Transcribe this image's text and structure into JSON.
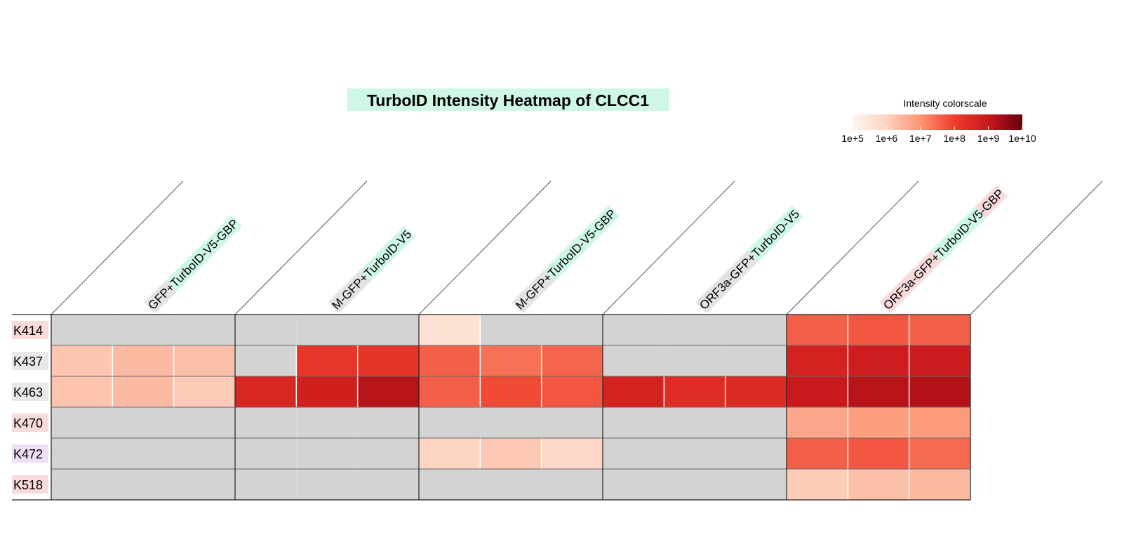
{
  "chart_data": {
    "type": "heatmap",
    "title": "TurboID Intensity Heatmap of CLCC1",
    "colorscale": {
      "title": "Intensity colorscale",
      "scale": "log10",
      "range": [
        100000,
        10000000000
      ],
      "ticks": [
        "1e+5",
        "1e+6",
        "1e+7",
        "1e+8",
        "1e+9",
        "1e+10"
      ],
      "colors": [
        "#fff5f0",
        "#fcd3c1",
        "#fc9474",
        "#ef3c2c",
        "#c8171c",
        "#67000d"
      ],
      "missing_color": "#d3d3d3"
    },
    "rows": [
      "K414",
      "K437",
      "K463",
      "K470",
      "K472",
      "K518"
    ],
    "row_highlights": [
      "#f9dada",
      "#e8e8e8",
      "#e8e8e8",
      "#f9dada",
      "#efdff5",
      "#f9dada"
    ],
    "groups": [
      {
        "label": "GFP+TurboID-V5-GBP",
        "segments": [
          {
            "text": "GFP+",
            "bg": "#e3e3e3"
          },
          {
            "text": "TurboID-V5-GBP",
            "bg": "#cff7e6"
          }
        ],
        "replicates": 3
      },
      {
        "label": "M-GFP+TurboID-V5",
        "segments": [
          {
            "text": "M-GFP+",
            "bg": "#e3e3e3"
          },
          {
            "text": "TurboID-V5",
            "bg": "#cff7e6"
          }
        ],
        "replicates": 3
      },
      {
        "label": "M-GFP+TurboID-V5-GBP",
        "segments": [
          {
            "text": "M-GFP+",
            "bg": "#e3e3e3"
          },
          {
            "text": "TurboID-V5-GBP",
            "bg": "#cff7e6"
          }
        ],
        "replicates": 3
      },
      {
        "label": "ORF3a-GFP+TurboID-V5",
        "segments": [
          {
            "text": "ORF3a-GFP+",
            "bg": "#e3e3e3"
          },
          {
            "text": "TurboID-V5",
            "bg": "#cff7e6"
          }
        ],
        "replicates": 3
      },
      {
        "label": "ORF3a-GFP+TurboID-V5-GBP",
        "segments": [
          {
            "text": "ORF3a-GFP+",
            "bg": "#f9dada"
          },
          {
            "text": "TurboID-V5",
            "bg": "#cff7e6"
          },
          {
            "text": "-GBP",
            "bg": "#f9dada"
          }
        ],
        "replicates": 3
      }
    ],
    "values": [
      [
        null,
        null,
        null,
        null,
        null,
        null,
        400000,
        null,
        null,
        null,
        null,
        null,
        40000000,
        50000000,
        40000000
      ],
      [
        1600000,
        2500000,
        2000000,
        null,
        150000000,
        180000000,
        40000000,
        25000000,
        35000000,
        null,
        null,
        null,
        500000000,
        700000000,
        800000000
      ],
      [
        1800000,
        2500000,
        1400000,
        400000000,
        600000000,
        1500000000,
        40000000,
        70000000,
        50000000,
        500000000,
        250000000,
        300000000,
        900000000,
        1500000000,
        1600000000
      ],
      [
        null,
        null,
        null,
        null,
        null,
        null,
        null,
        null,
        null,
        null,
        null,
        null,
        5000000,
        7000000,
        8000000
      ],
      [
        null,
        null,
        null,
        null,
        null,
        null,
        900000,
        1500000,
        800000,
        null,
        null,
        null,
        40000000,
        50000000,
        30000000
      ],
      [
        null,
        null,
        null,
        null,
        null,
        null,
        null,
        null,
        null,
        null,
        null,
        null,
        1300000,
        2000000,
        2500000
      ]
    ]
  }
}
